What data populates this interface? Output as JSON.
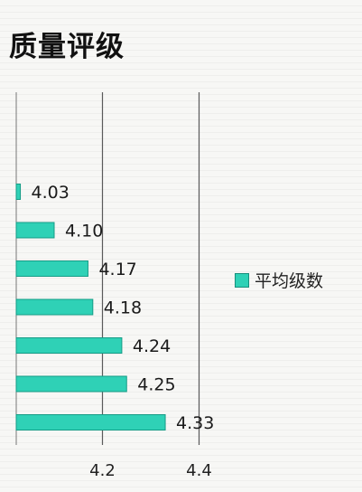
{
  "chart_data": {
    "type": "bar",
    "orientation": "horizontal",
    "title": "质量评级",
    "categories": [
      "",
      "",
      "",
      "",
      "",
      "",
      ""
    ],
    "series": [
      {
        "name": "平均级数",
        "values": [
          4.03,
          4.1,
          4.17,
          4.18,
          4.24,
          4.25,
          4.33
        ],
        "color": "#2fd1b6"
      }
    ],
    "data_labels": [
      "4.03",
      "4.10",
      "4.17",
      "4.18",
      "4.24",
      "4.25",
      "4.33"
    ],
    "xlim": [
      4.0,
      4.45
    ],
    "xticks": [
      "4.2",
      "4.4"
    ],
    "grid": true,
    "legend_position": "right"
  }
}
